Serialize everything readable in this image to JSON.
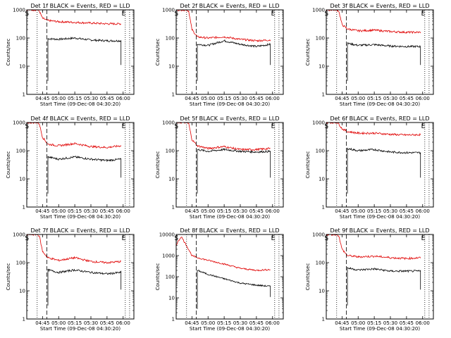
{
  "colors": {
    "events": "#000000",
    "lld": "#e00000",
    "axes": "#000000",
    "background": "#ffffff"
  },
  "chart_data": [
    {
      "type": "line",
      "title": "Det 1f BLACK = Events, RED = LLD",
      "xlabel": "Start Time (09-Dec-08 04:30:20)",
      "ylabel": "Counts/sec",
      "x_ticks": [
        "04:45",
        "05:00",
        "05:15",
        "05:30",
        "05:45",
        "06:00"
      ],
      "y_ticks": [
        "1",
        "10",
        "100",
        "1000"
      ],
      "y_scale": "log",
      "ylim": [
        1,
        1000
      ],
      "x": [
        "04:30",
        "04:40",
        "04:42",
        "04:45",
        "04:50",
        "05:00",
        "05:15",
        "05:30",
        "05:45",
        "05:58",
        "06:05"
      ],
      "series": [
        {
          "name": "Events",
          "color": "#000000",
          "values": [
            null,
            null,
            null,
            null,
            95,
            90,
            100,
            85,
            80,
            80,
            null
          ]
        },
        {
          "name": "LLD",
          "color": "#e00000",
          "values": [
            1000,
            1000,
            900,
            500,
            420,
            380,
            360,
            340,
            320,
            320,
            null
          ]
        }
      ],
      "markers": [
        "S",
        "E"
      ]
    },
    {
      "type": "line",
      "title": "Det 2f BLACK = Events, RED = LLD",
      "xlabel": "Start Time (09-Dec-08 04:30:20)",
      "ylabel": "Counts/sec",
      "x_ticks": [
        "04:45",
        "05:00",
        "05:15",
        "05:30",
        "05:45",
        "06:00"
      ],
      "y_ticks": [
        "1",
        "10",
        "100",
        "1000"
      ],
      "y_scale": "log",
      "ylim": [
        1,
        1000
      ],
      "x": [
        "04:30",
        "04:40",
        "04:42",
        "04:45",
        "04:50",
        "05:00",
        "05:15",
        "05:30",
        "05:45",
        "05:58",
        "06:05"
      ],
      "series": [
        {
          "name": "Events",
          "color": "#000000",
          "values": [
            null,
            null,
            null,
            null,
            60,
            55,
            80,
            60,
            50,
            60,
            null
          ]
        },
        {
          "name": "LLD",
          "color": "#e00000",
          "values": [
            1000,
            1000,
            900,
            200,
            110,
            100,
            110,
            90,
            80,
            85,
            null
          ]
        }
      ],
      "markers": [
        "S",
        "E"
      ]
    },
    {
      "type": "line",
      "title": "Det 3f BLACK = Events, RED = LLD",
      "xlabel": "Start Time (09-Dec-08 04:30:20)",
      "ylabel": "Counts/sec",
      "x_ticks": [
        "04:45",
        "05:00",
        "05:15",
        "05:30",
        "05:45",
        "06:00"
      ],
      "y_ticks": [
        "1",
        "10",
        "100",
        "1000"
      ],
      "y_scale": "log",
      "ylim": [
        1,
        1000
      ],
      "x": [
        "04:30",
        "04:40",
        "04:42",
        "04:45",
        "04:50",
        "05:00",
        "05:15",
        "05:30",
        "05:45",
        "05:58",
        "06:05"
      ],
      "series": [
        {
          "name": "Events",
          "color": "#000000",
          "values": [
            null,
            null,
            null,
            null,
            65,
            55,
            58,
            52,
            50,
            50,
            null
          ]
        },
        {
          "name": "LLD",
          "color": "#e00000",
          "values": [
            1000,
            1000,
            900,
            300,
            210,
            180,
            190,
            170,
            160,
            160,
            null
          ]
        }
      ],
      "markers": [
        "S",
        "E"
      ]
    },
    {
      "type": "line",
      "title": "Det 4f BLACK = Events, RED = LLD",
      "xlabel": "Start Time (09-Dec-08 04:30:20)",
      "ylabel": "Counts/sec",
      "x_ticks": [
        "04:45",
        "05:00",
        "05:15",
        "05:30",
        "05:45",
        "06:00"
      ],
      "y_ticks": [
        "1",
        "10",
        "100",
        "1000"
      ],
      "y_scale": "log",
      "ylim": [
        1,
        1000
      ],
      "x": [
        "04:30",
        "04:40",
        "04:42",
        "04:45",
        "04:50",
        "05:00",
        "05:15",
        "05:30",
        "05:45",
        "05:58",
        "06:05"
      ],
      "series": [
        {
          "name": "Events",
          "color": "#000000",
          "values": [
            null,
            null,
            null,
            null,
            60,
            50,
            60,
            50,
            45,
            50,
            null
          ]
        },
        {
          "name": "LLD",
          "color": "#e00000",
          "values": [
            1000,
            1000,
            900,
            300,
            170,
            150,
            180,
            140,
            130,
            150,
            null
          ]
        }
      ],
      "markers": [
        "S",
        "E"
      ]
    },
    {
      "type": "line",
      "title": "Det 5f BLACK = Events, RED = LLD",
      "xlabel": "Start Time (09-Dec-08 04:30:20)",
      "ylabel": "Counts/sec",
      "x_ticks": [
        "04:45",
        "05:00",
        "05:15",
        "05:30",
        "05:45",
        "06:00"
      ],
      "y_ticks": [
        "1",
        "10",
        "100",
        "1000"
      ],
      "y_scale": "log",
      "ylim": [
        1,
        1000
      ],
      "x": [
        "04:30",
        "04:40",
        "04:42",
        "04:45",
        "04:50",
        "05:00",
        "05:15",
        "05:30",
        "05:45",
        "05:58",
        "06:05"
      ],
      "series": [
        {
          "name": "Events",
          "color": "#000000",
          "values": [
            null,
            null,
            null,
            null,
            110,
            95,
            110,
            95,
            90,
            95,
            null
          ]
        },
        {
          "name": "LLD",
          "color": "#e00000",
          "values": [
            1000,
            1000,
            900,
            250,
            150,
            120,
            140,
            110,
            110,
            120,
            null
          ]
        }
      ],
      "markers": [
        "S",
        "E"
      ]
    },
    {
      "type": "line",
      "title": "Det 6f BLACK = Events, RED = LLD",
      "xlabel": "Start Time (09-Dec-08 04:30:20)",
      "ylabel": "Counts/sec",
      "x_ticks": [
        "04:45",
        "05:00",
        "05:15",
        "05:30",
        "05:45",
        "06:00"
      ],
      "y_ticks": [
        "1",
        "10",
        "100",
        "1000"
      ],
      "y_scale": "log",
      "ylim": [
        1,
        1000
      ],
      "x": [
        "04:30",
        "04:40",
        "04:42",
        "04:45",
        "04:50",
        "05:00",
        "05:15",
        "05:30",
        "05:45",
        "05:58",
        "06:05"
      ],
      "series": [
        {
          "name": "Events",
          "color": "#000000",
          "values": [
            null,
            null,
            null,
            null,
            120,
            100,
            110,
            90,
            85,
            85,
            null
          ]
        },
        {
          "name": "LLD",
          "color": "#e00000",
          "values": [
            1000,
            1000,
            900,
            600,
            480,
            420,
            420,
            380,
            360,
            370,
            null
          ]
        }
      ],
      "markers": [
        "S",
        "E"
      ]
    },
    {
      "type": "line",
      "title": "Det 7f BLACK = Events, RED = LLD",
      "xlabel": "Start Time (09-Dec-08 04:30:20)",
      "ylabel": "Counts/sec",
      "x_ticks": [
        "04:45",
        "05:00",
        "05:15",
        "05:30",
        "05:45",
        "06:00"
      ],
      "y_ticks": [
        "1",
        "10",
        "100",
        "1000"
      ],
      "y_scale": "log",
      "ylim": [
        1,
        1000
      ],
      "x": [
        "04:30",
        "04:40",
        "04:42",
        "04:45",
        "04:50",
        "05:00",
        "05:15",
        "05:30",
        "05:45",
        "05:58",
        "06:05"
      ],
      "series": [
        {
          "name": "Events",
          "color": "#000000",
          "values": [
            null,
            null,
            null,
            null,
            55,
            45,
            55,
            45,
            40,
            45,
            null
          ]
        },
        {
          "name": "LLD",
          "color": "#e00000",
          "values": [
            1000,
            1000,
            900,
            250,
            150,
            120,
            150,
            110,
            100,
            110,
            null
          ]
        }
      ],
      "markers": [
        "S",
        "E"
      ]
    },
    {
      "type": "line",
      "title": "Det 8f BLACK = Events, RED = LLD",
      "xlabel": "Start Time (09-Dec-08 04:30:20)",
      "ylabel": "Counts/sec",
      "x_ticks": [
        "04:45",
        "05:00",
        "05:15",
        "05:30",
        "05:45",
        "06:00"
      ],
      "y_ticks": [
        "1",
        "10",
        "100",
        "1000",
        "10000"
      ],
      "y_scale": "log",
      "ylim": [
        1,
        10000
      ],
      "x": [
        "04:30",
        "04:35",
        "04:40",
        "04:45",
        "04:50",
        "05:00",
        "05:15",
        "05:30",
        "05:45",
        "05:58",
        "06:05"
      ],
      "series": [
        {
          "name": "Events",
          "color": "#000000",
          "values": [
            null,
            null,
            null,
            null,
            200,
            130,
            80,
            50,
            40,
            35,
            null
          ]
        },
        {
          "name": "LLD",
          "color": "#e00000",
          "values": [
            3000,
            8000,
            3000,
            1000,
            800,
            600,
            400,
            250,
            200,
            220,
            null
          ]
        }
      ],
      "markers": [
        "S",
        "E"
      ]
    },
    {
      "type": "line",
      "title": "Det 9f BLACK = Events, RED = LLD",
      "xlabel": "Start Time (09-Dec-08 04:30:20)",
      "ylabel": "Counts/sec",
      "x_ticks": [
        "04:45",
        "05:00",
        "05:15",
        "05:30",
        "05:45",
        "06:00"
      ],
      "y_ticks": [
        "1",
        "10",
        "100",
        "1000"
      ],
      "y_scale": "log",
      "ylim": [
        1,
        1000
      ],
      "x": [
        "04:30",
        "04:40",
        "04:42",
        "04:45",
        "04:50",
        "05:00",
        "05:15",
        "05:30",
        "05:45",
        "05:58",
        "06:05"
      ],
      "series": [
        {
          "name": "Events",
          "color": "#000000",
          "values": [
            null,
            null,
            null,
            null,
            65,
            55,
            60,
            50,
            50,
            50,
            null
          ]
        },
        {
          "name": "LLD",
          "color": "#e00000",
          "values": [
            1000,
            1000,
            900,
            300,
            180,
            160,
            170,
            150,
            140,
            150,
            null
          ]
        }
      ],
      "markers": [
        "S",
        "E"
      ]
    }
  ]
}
